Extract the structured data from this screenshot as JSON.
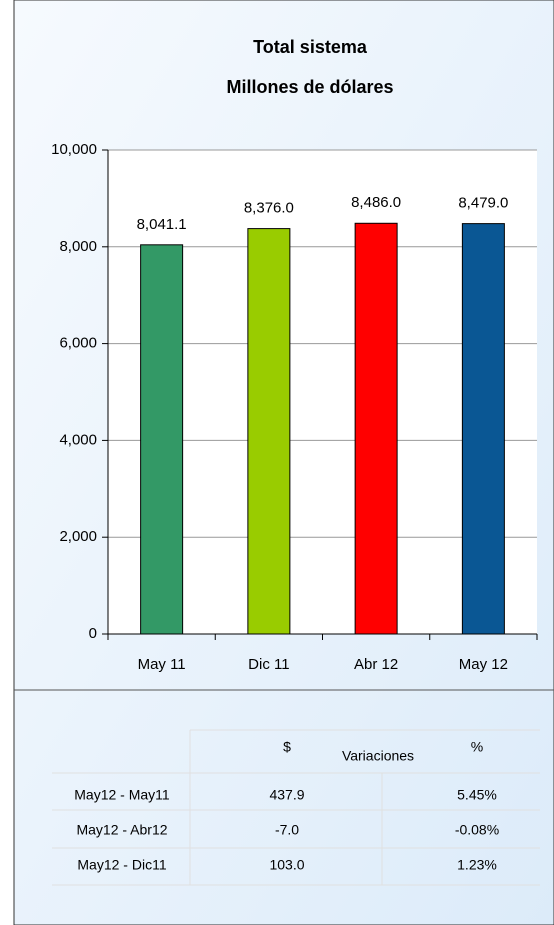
{
  "chart_data": {
    "type": "bar",
    "title": "Total sistema",
    "subtitle": "Millones de dólares",
    "categories": [
      "May 11",
      "Dic 11",
      "Abr 12",
      "May 12"
    ],
    "values": [
      8041.1,
      8376.0,
      8486.0,
      8479.0
    ],
    "value_labels": [
      "8,041.1",
      "8,376.0",
      "8,486.0",
      "8,479.0"
    ],
    "colors": [
      "#339966",
      "#99cc00",
      "#ff0000",
      "#0a5794"
    ],
    "ylim": [
      0,
      10000
    ],
    "yticks": [
      0,
      {
        "value": 2000,
        "label": "2,000"
      },
      {
        "value": 4000,
        "label": "4,000"
      },
      {
        "value": 6000,
        "label": "6,000"
      },
      {
        "value": 8000,
        "label": "8,000"
      },
      {
        "value": 10000,
        "label": "10,000"
      }
    ],
    "grid": true
  },
  "table": {
    "header": [
      "$",
      "Variaciones",
      "%"
    ],
    "rows": [
      [
        "May12 - May11",
        "437.9",
        "5.45%"
      ],
      [
        "May12 - Abr12",
        "-7.0",
        "-0.08%"
      ],
      [
        "May12 - Dic11",
        "103.0",
        "1.23%"
      ]
    ]
  }
}
